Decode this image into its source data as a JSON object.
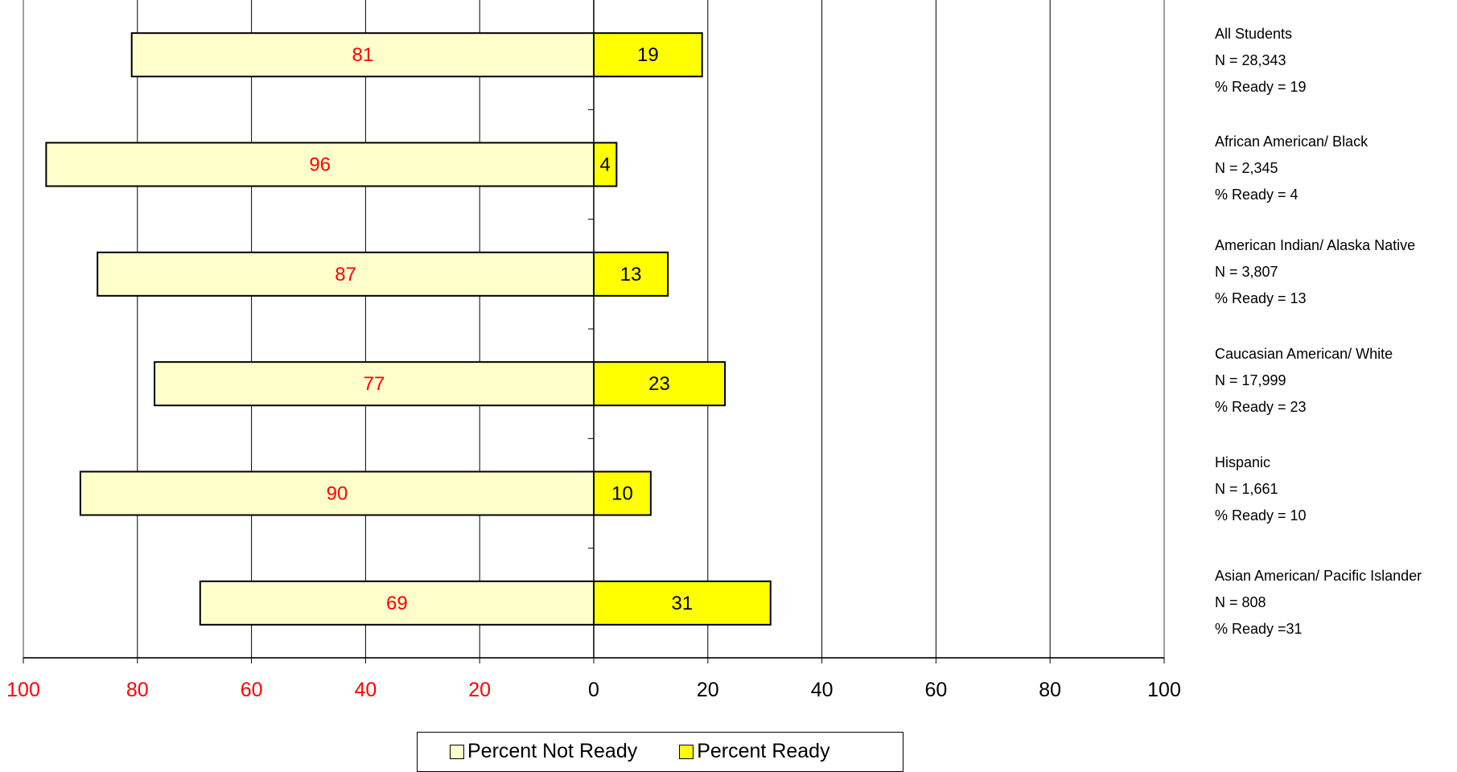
{
  "chart_data": {
    "type": "bar",
    "orientation": "horizontal-diverging",
    "categories": [
      "All Students",
      "African American/ Black",
      "American Indian/ Alaska Native",
      "Caucasian American/ White",
      "Hispanic",
      "Asian American/ Pacific Islander"
    ],
    "series": [
      {
        "name": "Percent Not Ready",
        "values": [
          81,
          96,
          87,
          77,
          90,
          69
        ],
        "color": "#ffffcc",
        "direction": "left"
      },
      {
        "name": "Percent Ready",
        "values": [
          19,
          4,
          13,
          23,
          10,
          31
        ],
        "color": "#ffff00",
        "direction": "right"
      }
    ],
    "xlim": [
      -100,
      100
    ],
    "x_ticks": [
      "100",
      "80",
      "60",
      "40",
      "20",
      "0",
      "20",
      "40",
      "60",
      "80",
      "100"
    ],
    "grid": true,
    "legend_position": "bottom-center",
    "colors": {
      "negative_labels": "#ff0000",
      "positive_labels": "#000000"
    }
  },
  "side_labels": [
    {
      "name": "All Students",
      "n": "N = 28,343",
      "ready": "% Ready = 19"
    },
    {
      "name": "African American/ Black",
      "n": "N = 2,345",
      "ready": "% Ready = 4"
    },
    {
      "name": "American Indian/ Alaska Native",
      "n": "N = 3,807",
      "ready": "% Ready = 13"
    },
    {
      "name": "Caucasian American/ White",
      "n": "N = 17,999",
      "ready": "% Ready = 23"
    },
    {
      "name": "Hispanic",
      "n": "N = 1,661",
      "ready": "% Ready = 10"
    },
    {
      "name": "Asian American/ Pacific Islander",
      "n": "N = 808",
      "ready": "% Ready =31"
    }
  ],
  "legend": {
    "not_ready": "Percent Not Ready",
    "ready": "Percent Ready"
  }
}
